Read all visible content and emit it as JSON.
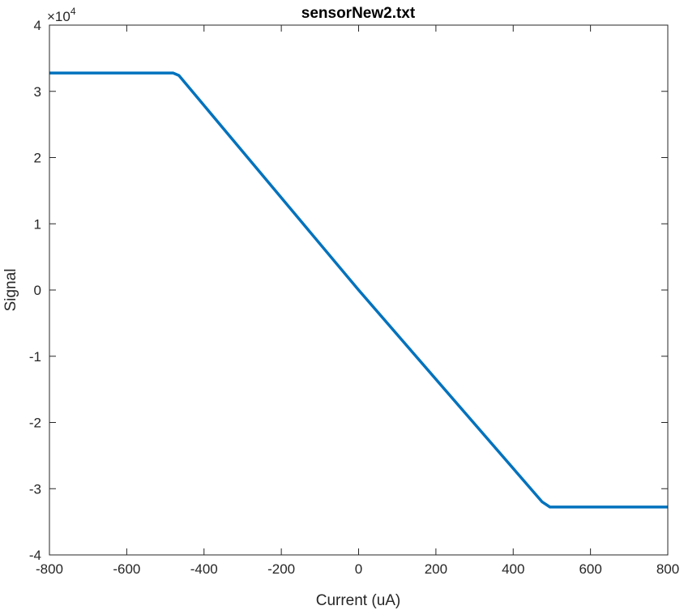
{
  "chart_data": {
    "type": "line",
    "title": "sensorNew2.txt",
    "xlabel": "Current (uA)",
    "ylabel": "Signal",
    "xlim": [
      -800,
      800
    ],
    "ylim": [
      -40000,
      40000
    ],
    "x_ticks": [
      -800,
      -600,
      -400,
      -200,
      0,
      200,
      400,
      600,
      800
    ],
    "x_tick_labels": [
      "-800",
      "-600",
      "-400",
      "-200",
      "0",
      "200",
      "400",
      "600",
      "800"
    ],
    "y_ticks": [
      -40000,
      -30000,
      -20000,
      -10000,
      0,
      10000,
      20000,
      30000,
      40000
    ],
    "y_tick_labels": [
      "-4",
      "-3",
      "-2",
      "-1",
      "0",
      "1",
      "2",
      "3",
      "4"
    ],
    "y_exponent_label": "×10",
    "y_exponent_power": "4",
    "grid": false,
    "series": [
      {
        "color": "#0072BD",
        "x": [
          -800,
          -480,
          -465,
          0,
          475,
          495,
          800
        ],
        "y": [
          32767,
          32767,
          32400,
          0,
          -32000,
          -32767,
          -32767
        ]
      }
    ]
  }
}
